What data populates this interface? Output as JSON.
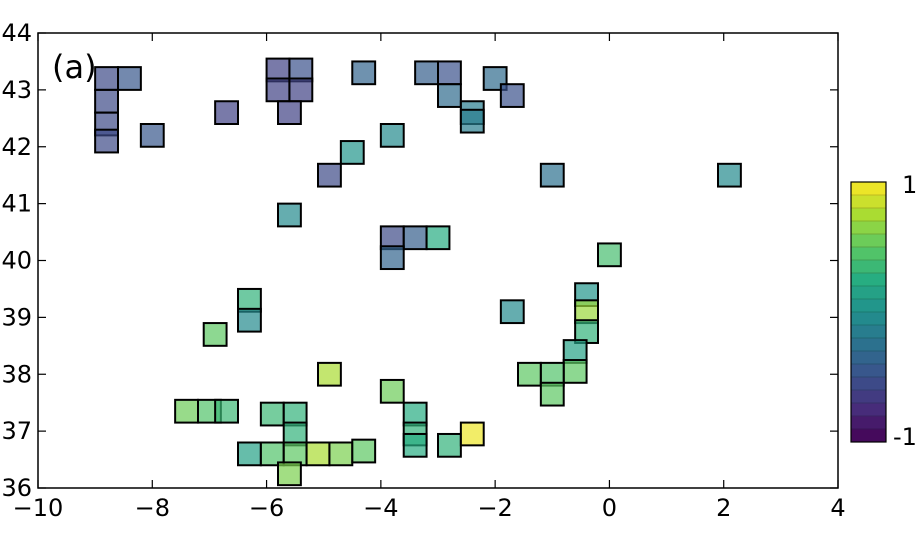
{
  "chart_data": {
    "type": "heatmap",
    "panel_label": "(a)",
    "xlim": [
      -10,
      4
    ],
    "ylim": [
      36,
      44
    ],
    "x_ticks": [
      {
        "value": -10,
        "label": "−10"
      },
      {
        "value": -8,
        "label": "−8"
      },
      {
        "value": -6,
        "label": "−6"
      },
      {
        "value": -4,
        "label": "−4"
      },
      {
        "value": -2,
        "label": "−2"
      },
      {
        "value": 0,
        "label": "0"
      },
      {
        "value": 2,
        "label": "2"
      },
      {
        "value": 4,
        "label": "4"
      }
    ],
    "y_ticks": [
      {
        "value": 36,
        "label": "36"
      },
      {
        "value": 37,
        "label": "37"
      },
      {
        "value": 38,
        "label": "38"
      },
      {
        "value": 39,
        "label": "39"
      },
      {
        "value": 40,
        "label": "40"
      },
      {
        "value": 41,
        "label": "41"
      },
      {
        "value": 42,
        "label": "42"
      },
      {
        "value": 43,
        "label": "43"
      },
      {
        "value": 44,
        "label": "44"
      }
    ],
    "colorbar": {
      "min": -1,
      "max": 1,
      "levels": 20,
      "max_label": "1",
      "min_label": "-1",
      "colormap": "viridis",
      "colors": [
        "#440154",
        "#472c7a",
        "#3b518b",
        "#2c718e",
        "#21908d",
        "#27ad81",
        "#5cc863",
        "#aadc32",
        "#fde725"
      ]
    },
    "cell_size_deg": 0.4,
    "cells": [
      {
        "lon": -8.8,
        "lat": 43.2,
        "value": -0.55
      },
      {
        "lon": -8.4,
        "lat": 43.2,
        "value": -0.45
      },
      {
        "lon": -8.8,
        "lat": 42.8,
        "value": -0.55
      },
      {
        "lon": -8.8,
        "lat": 42.4,
        "value": -0.55
      },
      {
        "lon": -8.8,
        "lat": 42.1,
        "value": -0.55
      },
      {
        "lon": -8.0,
        "lat": 42.2,
        "value": -0.45
      },
      {
        "lon": -6.7,
        "lat": 42.6,
        "value": -0.6
      },
      {
        "lon": -5.8,
        "lat": 43.35,
        "value": -0.6
      },
      {
        "lon": -5.4,
        "lat": 43.35,
        "value": -0.5
      },
      {
        "lon": -5.8,
        "lat": 43.0,
        "value": -0.6
      },
      {
        "lon": -5.4,
        "lat": 43.0,
        "value": -0.6
      },
      {
        "lon": -5.6,
        "lat": 42.6,
        "value": -0.6
      },
      {
        "lon": -4.3,
        "lat": 43.3,
        "value": -0.35
      },
      {
        "lon": -3.8,
        "lat": 42.2,
        "value": -0.05
      },
      {
        "lon": -4.5,
        "lat": 41.9,
        "value": 0.05
      },
      {
        "lon": -4.9,
        "lat": 41.5,
        "value": -0.55
      },
      {
        "lon": -3.2,
        "lat": 43.3,
        "value": -0.4
      },
      {
        "lon": -2.8,
        "lat": 43.3,
        "value": -0.5
      },
      {
        "lon": -2.8,
        "lat": 42.9,
        "value": -0.3
      },
      {
        "lon": -2.4,
        "lat": 42.6,
        "value": -0.15
      },
      {
        "lon": -2.4,
        "lat": 42.45,
        "value": -0.15
      },
      {
        "lon": -2.0,
        "lat": 43.2,
        "value": -0.3
      },
      {
        "lon": -1.7,
        "lat": 42.9,
        "value": -0.5
      },
      {
        "lon": -1.0,
        "lat": 41.5,
        "value": -0.25
      },
      {
        "lon": 2.1,
        "lat": 41.5,
        "value": -0.05
      },
      {
        "lon": -5.6,
        "lat": 40.8,
        "value": -0.05
      },
      {
        "lon": -3.8,
        "lat": 40.4,
        "value": -0.55
      },
      {
        "lon": -3.4,
        "lat": 40.4,
        "value": -0.4
      },
      {
        "lon": -3.0,
        "lat": 40.4,
        "value": 0.25
      },
      {
        "lon": -3.8,
        "lat": 40.05,
        "value": -0.35
      },
      {
        "lon": 0.0,
        "lat": 40.1,
        "value": 0.4
      },
      {
        "lon": -6.3,
        "lat": 39.3,
        "value": 0.3
      },
      {
        "lon": -6.3,
        "lat": 38.95,
        "value": -0.05
      },
      {
        "lon": -6.9,
        "lat": 38.7,
        "value": 0.5
      },
      {
        "lon": -1.7,
        "lat": 39.1,
        "value": -0.05
      },
      {
        "lon": -0.4,
        "lat": 39.4,
        "value": 0.05
      },
      {
        "lon": -0.4,
        "lat": 39.1,
        "value": 0.7
      },
      {
        "lon": -0.4,
        "lat": 38.75,
        "value": 0.3
      },
      {
        "lon": -0.6,
        "lat": 38.4,
        "value": 0.15
      },
      {
        "lon": -0.6,
        "lat": 38.05,
        "value": 0.5
      },
      {
        "lon": -1.4,
        "lat": 38.0,
        "value": 0.5
      },
      {
        "lon": -1.0,
        "lat": 38.0,
        "value": 0.45
      },
      {
        "lon": -1.0,
        "lat": 37.65,
        "value": 0.5
      },
      {
        "lon": -4.9,
        "lat": 38.0,
        "value": 0.75
      },
      {
        "lon": -3.8,
        "lat": 37.7,
        "value": 0.55
      },
      {
        "lon": -3.4,
        "lat": 37.3,
        "value": 0.25
      },
      {
        "lon": -3.4,
        "lat": 36.95,
        "value": 0.3
      },
      {
        "lon": -3.4,
        "lat": 36.75,
        "value": 0.25
      },
      {
        "lon": -2.8,
        "lat": 36.75,
        "value": 0.3
      },
      {
        "lon": -2.4,
        "lat": 36.95,
        "value": 0.95
      },
      {
        "lon": -7.4,
        "lat": 37.35,
        "value": 0.55
      },
      {
        "lon": -7.0,
        "lat": 37.35,
        "value": 0.45
      },
      {
        "lon": -6.7,
        "lat": 37.35,
        "value": 0.35
      },
      {
        "lon": -5.9,
        "lat": 37.3,
        "value": 0.35
      },
      {
        "lon": -5.5,
        "lat": 37.3,
        "value": 0.3
      },
      {
        "lon": -5.5,
        "lat": 36.95,
        "value": 0.3
      },
      {
        "lon": -6.3,
        "lat": 36.6,
        "value": 0.15
      },
      {
        "lon": -5.9,
        "lat": 36.6,
        "value": 0.45
      },
      {
        "lon": -5.5,
        "lat": 36.6,
        "value": 0.5
      },
      {
        "lon": -5.1,
        "lat": 36.6,
        "value": 0.75
      },
      {
        "lon": -4.7,
        "lat": 36.6,
        "value": 0.6
      },
      {
        "lon": -4.3,
        "lat": 36.65,
        "value": 0.5
      },
      {
        "lon": -5.6,
        "lat": 36.25,
        "value": 0.6
      }
    ]
  }
}
